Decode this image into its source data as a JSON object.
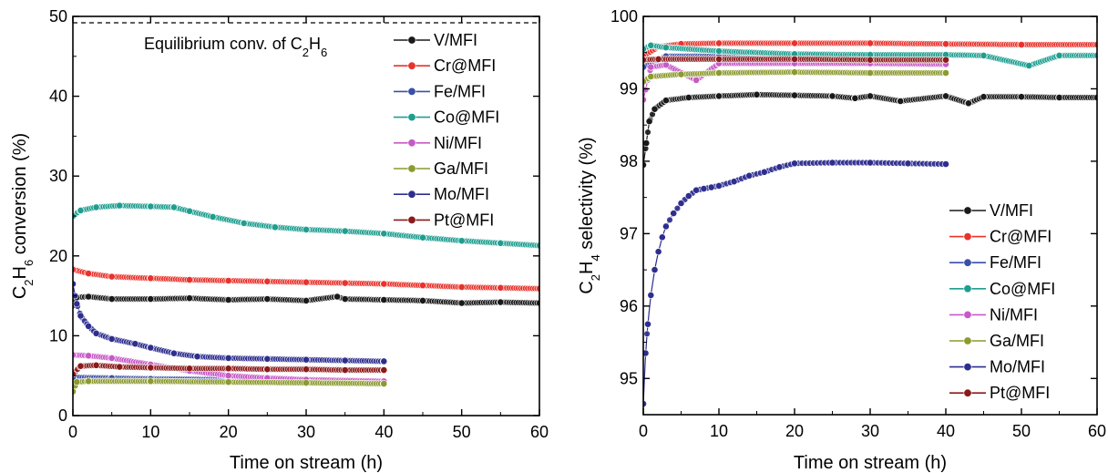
{
  "chart_data": [
    {
      "type": "scatter",
      "xlabel": "Time on stream (h)",
      "ylabel_parts": [
        "C",
        "2",
        "H",
        "6",
        " conversion (%)"
      ],
      "xlim": [
        0,
        60
      ],
      "ylim": [
        0,
        50
      ],
      "xticks": [
        0,
        10,
        20,
        30,
        40,
        50,
        60
      ],
      "yticks": [
        0,
        10,
        20,
        30,
        40,
        50
      ],
      "legend_position": "top-right",
      "annotation_parts": [
        "Equilibrium conv. of C",
        "2",
        "H",
        "6"
      ],
      "reference_line": {
        "y": 49.2,
        "style": "dashed"
      },
      "series": [
        {
          "name": "V/MFI",
          "color": "#1a1a1a",
          "points": [
            [
              0,
              13.8
            ],
            [
              0.5,
              14.8
            ],
            [
              2,
              14.9
            ],
            [
              5,
              14.6
            ],
            [
              10,
              14.6
            ],
            [
              15,
              14.7
            ],
            [
              20,
              14.5
            ],
            [
              25,
              14.6
            ],
            [
              30,
              14.4
            ],
            [
              34,
              14.9
            ],
            [
              35,
              14.6
            ],
            [
              40,
              14.5
            ],
            [
              45,
              14.4
            ],
            [
              50,
              14.1
            ],
            [
              55,
              14.2
            ],
            [
              60,
              14.1
            ]
          ]
        },
        {
          "name": "Cr@MFI",
          "color": "#e8322b",
          "points": [
            [
              0,
              18.3
            ],
            [
              2,
              17.8
            ],
            [
              5,
              17.4
            ],
            [
              10,
              17.2
            ],
            [
              15,
              17.0
            ],
            [
              20,
              16.9
            ],
            [
              25,
              16.8
            ],
            [
              30,
              16.7
            ],
            [
              35,
              16.6
            ],
            [
              40,
              16.5
            ],
            [
              45,
              16.3
            ],
            [
              50,
              16.1
            ],
            [
              55,
              16.0
            ],
            [
              60,
              15.9
            ]
          ]
        },
        {
          "name": "Fe/MFI",
          "color": "#3a4fa8",
          "points": [
            [
              0,
              4.8
            ],
            [
              5,
              4.7
            ],
            [
              10,
              4.6
            ],
            [
              20,
              4.5
            ],
            [
              30,
              4.4
            ],
            [
              40,
              4.3
            ]
          ]
        },
        {
          "name": "Co@MFI",
          "color": "#1f9e90",
          "points": [
            [
              0,
              25.0
            ],
            [
              1,
              25.7
            ],
            [
              3,
              26.1
            ],
            [
              6,
              26.3
            ],
            [
              10,
              26.2
            ],
            [
              13,
              26.1
            ],
            [
              15,
              25.6
            ],
            [
              18,
              24.9
            ],
            [
              22,
              24.1
            ],
            [
              26,
              23.6
            ],
            [
              30,
              23.3
            ],
            [
              35,
              23.1
            ],
            [
              40,
              22.8
            ],
            [
              45,
              22.3
            ],
            [
              50,
              21.9
            ],
            [
              55,
              21.6
            ],
            [
              60,
              21.3
            ]
          ]
        },
        {
          "name": "Ni/MFI",
          "color": "#c75ac7",
          "points": [
            [
              0,
              7.6
            ],
            [
              2,
              7.5
            ],
            [
              5,
              7.2
            ],
            [
              10,
              6.4
            ],
            [
              15,
              5.6
            ],
            [
              20,
              5.0
            ],
            [
              25,
              4.7
            ],
            [
              30,
              4.5
            ],
            [
              40,
              4.3
            ]
          ]
        },
        {
          "name": "Ga/MFI",
          "color": "#8c9a2e",
          "points": [
            [
              0,
              3.0
            ],
            [
              0.5,
              4.2
            ],
            [
              2,
              4.3
            ],
            [
              10,
              4.3
            ],
            [
              20,
              4.2
            ],
            [
              30,
              4.1
            ],
            [
              40,
              4.0
            ]
          ]
        },
        {
          "name": "Mo/MFI",
          "color": "#2e2e8f",
          "points": [
            [
              0,
              16.5
            ],
            [
              0.5,
              14.0
            ],
            [
              1,
              12.5
            ],
            [
              2,
              11.2
            ],
            [
              3,
              10.3
            ],
            [
              5,
              9.6
            ],
            [
              8,
              9.0
            ],
            [
              10,
              8.5
            ],
            [
              13,
              7.8
            ],
            [
              16,
              7.4
            ],
            [
              20,
              7.2
            ],
            [
              25,
              7.1
            ],
            [
              30,
              7.0
            ],
            [
              35,
              6.9
            ],
            [
              40,
              6.8
            ]
          ]
        },
        {
          "name": "Pt@MFI",
          "color": "#8b1a1a",
          "points": [
            [
              0,
              5.2
            ],
            [
              1,
              6.2
            ],
            [
              3,
              6.3
            ],
            [
              6,
              6.1
            ],
            [
              10,
              6.0
            ],
            [
              15,
              5.9
            ],
            [
              20,
              5.9
            ],
            [
              25,
              5.8
            ],
            [
              30,
              5.8
            ],
            [
              35,
              5.7
            ],
            [
              40,
              5.7
            ]
          ]
        }
      ]
    },
    {
      "type": "scatter",
      "xlabel": "Time on stream (h)",
      "ylabel_parts": [
        "C",
        "2",
        "H",
        "4",
        " selectivity (%)"
      ],
      "xlim": [
        0,
        60
      ],
      "ylim": [
        94.5,
        100
      ],
      "xticks": [
        0,
        10,
        20,
        30,
        40,
        50,
        60
      ],
      "yticks": [
        95,
        96,
        97,
        98,
        99,
        100
      ],
      "legend_position": "bottom-right",
      "series": [
        {
          "name": "V/MFI",
          "color": "#1a1a1a",
          "points": [
            [
              0,
              97.95
            ],
            [
              0.4,
              98.25
            ],
            [
              0.8,
              98.55
            ],
            [
              1.5,
              98.72
            ],
            [
              3,
              98.84
            ],
            [
              6,
              98.88
            ],
            [
              10,
              98.9
            ],
            [
              15,
              98.92
            ],
            [
              20,
              98.91
            ],
            [
              25,
              98.9
            ],
            [
              28,
              98.87
            ],
            [
              30,
              98.9
            ],
            [
              34,
              98.83
            ],
            [
              40,
              98.9
            ],
            [
              43,
              98.8
            ],
            [
              45,
              98.89
            ],
            [
              50,
              98.89
            ],
            [
              55,
              98.88
            ],
            [
              60,
              98.88
            ]
          ]
        },
        {
          "name": "Cr@MFI",
          "color": "#e8322b",
          "points": [
            [
              0,
              99.45
            ],
            [
              2,
              99.58
            ],
            [
              5,
              99.62
            ],
            [
              10,
              99.63
            ],
            [
              20,
              99.63
            ],
            [
              30,
              99.63
            ],
            [
              40,
              99.62
            ],
            [
              50,
              99.61
            ],
            [
              60,
              99.61
            ]
          ]
        },
        {
          "name": "Fe/MFI",
          "color": "#3a4fa8",
          "points": [
            [
              0,
              99.3
            ],
            [
              3,
              99.45
            ],
            [
              10,
              99.45
            ],
            [
              20,
              99.45
            ],
            [
              30,
              99.45
            ],
            [
              40,
              99.44
            ]
          ]
        },
        {
          "name": "Co@MFI",
          "color": "#1f9e90",
          "points": [
            [
              0,
              99.55
            ],
            [
              1,
              99.6
            ],
            [
              3,
              99.57
            ],
            [
              10,
              99.52
            ],
            [
              20,
              99.48
            ],
            [
              30,
              99.47
            ],
            [
              40,
              99.47
            ],
            [
              45,
              99.46
            ],
            [
              51,
              99.32
            ],
            [
              55,
              99.46
            ],
            [
              60,
              99.46
            ]
          ]
        },
        {
          "name": "Ni/MFI",
          "color": "#c75ac7",
          "points": [
            [
              0,
              98.85
            ],
            [
              1,
              99.3
            ],
            [
              3,
              99.33
            ],
            [
              7,
              99.12
            ],
            [
              10,
              99.35
            ],
            [
              20,
              99.35
            ],
            [
              30,
              99.35
            ],
            [
              40,
              99.34
            ]
          ]
        },
        {
          "name": "Ga/MFI",
          "color": "#8c9a2e",
          "points": [
            [
              0,
              99.1
            ],
            [
              1,
              99.17
            ],
            [
              5,
              99.2
            ],
            [
              10,
              99.22
            ],
            [
              20,
              99.23
            ],
            [
              30,
              99.22
            ],
            [
              40,
              99.22
            ]
          ]
        },
        {
          "name": "Mo/MFI",
          "color": "#2e2e8f",
          "points": [
            [
              0,
              94.65
            ],
            [
              0.3,
              95.35
            ],
            [
              0.6,
              95.75
            ],
            [
              1,
              96.15
            ],
            [
              1.5,
              96.5
            ],
            [
              2,
              96.75
            ],
            [
              2.5,
              96.95
            ],
            [
              3,
              97.1
            ],
            [
              4,
              97.28
            ],
            [
              5,
              97.42
            ],
            [
              6,
              97.52
            ],
            [
              7,
              97.6
            ],
            [
              8,
              97.62
            ],
            [
              9,
              97.64
            ],
            [
              10,
              97.66
            ],
            [
              12,
              97.72
            ],
            [
              14,
              97.8
            ],
            [
              16,
              97.85
            ],
            [
              18,
              97.92
            ],
            [
              20,
              97.97
            ],
            [
              25,
              97.98
            ],
            [
              30,
              97.98
            ],
            [
              35,
              97.97
            ],
            [
              40,
              97.96
            ]
          ]
        },
        {
          "name": "Pt@MFI",
          "color": "#8b1a1a",
          "points": [
            [
              0,
              99.4
            ],
            [
              2,
              99.41
            ],
            [
              10,
              99.41
            ],
            [
              20,
              99.41
            ],
            [
              30,
              99.4
            ],
            [
              40,
              99.4
            ]
          ]
        }
      ]
    }
  ]
}
